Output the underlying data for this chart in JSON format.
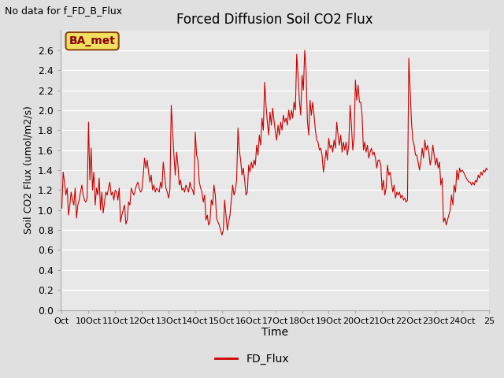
{
  "title": "Forced Diffusion Soil CO2 Flux",
  "xlabel": "Time",
  "ylabel": "Soil CO2 Flux (umol/m2/s)",
  "top_left_text": "No data for f_FD_B_Flux",
  "legend_label": "FD_Flux",
  "legend_box_label": "BA_met",
  "ylim": [
    0.0,
    2.8
  ],
  "yticks": [
    0.0,
    0.2,
    0.4,
    0.6,
    0.8,
    1.0,
    1.2,
    1.4,
    1.6,
    1.8,
    2.0,
    2.2,
    2.4,
    2.6
  ],
  "line_color": "#cc0000",
  "background_color": "#e0e0e0",
  "plot_bg_color": "#e8e8e8",
  "grid_color": "#ffffff",
  "xtick_labels": [
    "Oct",
    "10Oct",
    "11Oct",
    "12Oct",
    "13Oct",
    "14Oct",
    "15Oct",
    "16Oct",
    "17Oct",
    "18Oct",
    "19Oct",
    "20Oct",
    "21Oct",
    "22Oct",
    "23Oct",
    "24Oct",
    "25"
  ],
  "n_days": 16,
  "pts_per_day": 20,
  "y_values": [
    1.02,
    1.38,
    1.28,
    1.15,
    1.22,
    0.95,
    1.05,
    1.18,
    1.1,
    1.05,
    1.22,
    0.92,
    1.05,
    1.1,
    1.18,
    1.25,
    1.15,
    1.1,
    1.08,
    1.12,
    1.88,
    1.3,
    1.62,
    1.2,
    1.38,
    1.05,
    1.22,
    1.15,
    1.32,
    1.0,
    1.18,
    0.97,
    1.08,
    1.18,
    1.15,
    1.22,
    1.28,
    1.15,
    1.18,
    1.1,
    1.2,
    1.18,
    1.1,
    1.22,
    0.88,
    0.95,
    1.0,
    1.05,
    0.86,
    0.9,
    1.08,
    1.05,
    1.22,
    1.18,
    1.15,
    1.2,
    1.25,
    1.28,
    1.22,
    1.18,
    1.2,
    1.35,
    1.52,
    1.42,
    1.5,
    1.38,
    1.28,
    1.35,
    1.2,
    1.25,
    1.18,
    1.22,
    1.2,
    1.18,
    1.28,
    1.22,
    1.48,
    1.35,
    1.22,
    1.18,
    1.12,
    1.2,
    2.05,
    1.8,
    1.55,
    1.35,
    1.58,
    1.45,
    1.25,
    1.3,
    1.2,
    1.22,
    1.18,
    1.25,
    1.22,
    1.18,
    1.28,
    1.22,
    1.2,
    1.15,
    1.78,
    1.55,
    1.5,
    1.28,
    1.22,
    1.18,
    1.08,
    1.15,
    0.9,
    0.95,
    0.85,
    0.88,
    1.1,
    1.05,
    1.25,
    1.15,
    0.92,
    0.88,
    0.85,
    0.8,
    0.75,
    0.8,
    1.1,
    0.95,
    0.8,
    0.88,
    0.95,
    1.1,
    1.25,
    1.15,
    1.2,
    1.3,
    1.82,
    1.6,
    1.5,
    1.35,
    1.42,
    1.3,
    1.15,
    1.18,
    1.45,
    1.38,
    1.48,
    1.42,
    1.5,
    1.45,
    1.65,
    1.55,
    1.75,
    1.65,
    1.92,
    1.8,
    2.28,
    2.05,
    1.88,
    1.75,
    1.98,
    1.85,
    2.02,
    1.9,
    1.78,
    1.7,
    1.85,
    1.75,
    1.88,
    1.8,
    1.95,
    1.88,
    1.92,
    1.85,
    2.0,
    1.9,
    2.0,
    1.92,
    2.08,
    2.0,
    2.56,
    2.35,
    2.1,
    1.95,
    2.35,
    2.2,
    2.6,
    2.4,
    1.9,
    1.75,
    2.1,
    1.95,
    2.08,
    1.95,
    1.8,
    1.7,
    1.68,
    1.6,
    1.62,
    1.55,
    1.38,
    1.48,
    1.6,
    1.5,
    1.72,
    1.62,
    1.65,
    1.58,
    1.7,
    1.62,
    1.88,
    1.75,
    1.65,
    1.75,
    1.58,
    1.68,
    1.6,
    1.68,
    1.55,
    1.65,
    2.05,
    1.85,
    1.6,
    1.72,
    2.3,
    2.1,
    2.25,
    2.08,
    2.08,
    1.95,
    1.6,
    1.68,
    1.58,
    1.65,
    1.52,
    1.58,
    1.62,
    1.55,
    1.58,
    1.52,
    1.42,
    1.5,
    1.5,
    1.45,
    1.2,
    1.3,
    1.15,
    1.22,
    1.45,
    1.35,
    1.38,
    1.28,
    1.18,
    1.25,
    1.12,
    1.18,
    1.15,
    1.18,
    1.12,
    1.15,
    1.1,
    1.12,
    1.08,
    1.1,
    2.52,
    2.2,
    1.88,
    1.7,
    1.65,
    1.55,
    1.55,
    1.48,
    1.4,
    1.48,
    1.62,
    1.52,
    1.7,
    1.6,
    1.65,
    1.58,
    1.45,
    1.52,
    1.65,
    1.55,
    1.45,
    1.52,
    1.42,
    1.48,
    1.25,
    1.32,
    0.88,
    0.92,
    0.85,
    0.9,
    0.95,
    1.0,
    1.15,
    1.05,
    1.25,
    1.18,
    1.4,
    1.3,
    1.42,
    1.38,
    1.4,
    1.38,
    1.35,
    1.32,
    1.3,
    1.28,
    1.28,
    1.25,
    1.28,
    1.25,
    1.3,
    1.28,
    1.35,
    1.32,
    1.38,
    1.35,
    1.4,
    1.38,
    1.42,
    1.4
  ]
}
